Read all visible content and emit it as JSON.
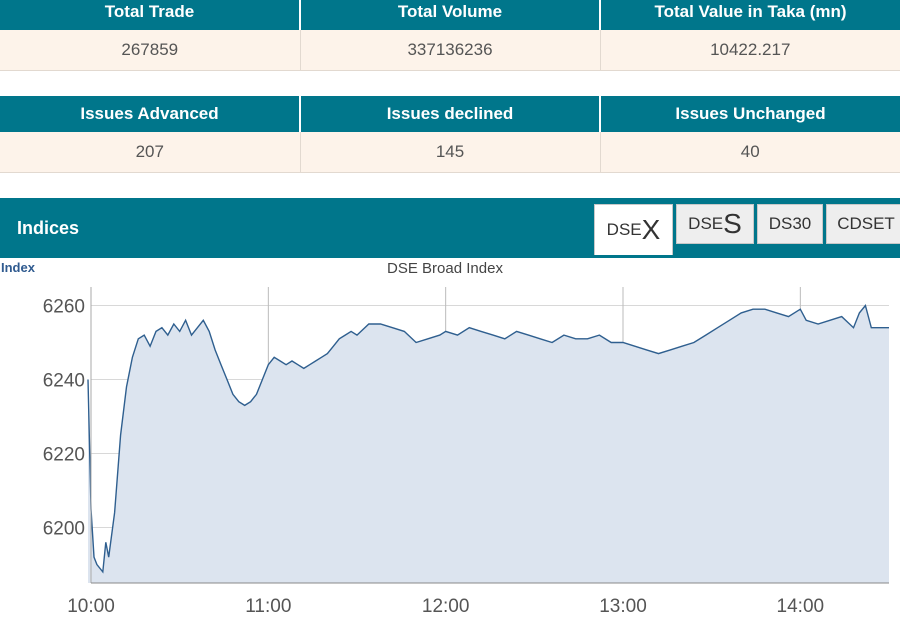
{
  "market_summary": {
    "headers": [
      "Total Trade",
      "Total Volume",
      "Total Value in Taka (mn)"
    ],
    "values": [
      "267859",
      "337136236",
      "10422.217"
    ]
  },
  "issues_summary": {
    "headers": [
      "Issues Advanced",
      "Issues declined",
      "Issues Unchanged"
    ],
    "values": [
      "207",
      "145",
      "40"
    ]
  },
  "indices": {
    "title": "Indices",
    "tabs": [
      {
        "prefix": "DSE",
        "suffix": "X",
        "active": true
      },
      {
        "prefix": "DSE",
        "suffix": "S",
        "active": false
      },
      {
        "prefix": "DS30",
        "suffix": "",
        "active": false
      },
      {
        "prefix": "CDSET",
        "suffix": "",
        "active": false
      }
    ]
  },
  "chart_data": {
    "type": "area",
    "title": "DSE Broad Index",
    "corner_label": "Index",
    "ylim": [
      6185,
      6265
    ],
    "yticks": [
      6200,
      6220,
      6240,
      6260
    ],
    "xlim": [
      "10:00",
      "14:30"
    ],
    "xticks": [
      "10:00",
      "11:00",
      "12:00",
      "13:00",
      "14:00"
    ],
    "grid": true,
    "line_color": "#2f5f8f",
    "fill_color": "#dce4ef",
    "series": [
      {
        "x": [
          "09:59",
          "10:00",
          "10:01",
          "10:02",
          "10:04",
          "10:05",
          "10:06",
          "10:08",
          "10:10",
          "10:12",
          "10:14",
          "10:16",
          "10:18",
          "10:20",
          "10:22",
          "10:24",
          "10:26",
          "10:28",
          "10:30",
          "10:32",
          "10:34",
          "10:36",
          "10:38",
          "10:40",
          "10:42",
          "10:44",
          "10:46",
          "10:48",
          "10:50",
          "10:52",
          "10:54",
          "10:56",
          "10:58",
          "11:00",
          "11:02",
          "11:04",
          "11:06",
          "11:08",
          "11:10",
          "11:12",
          "11:14",
          "11:16",
          "11:18",
          "11:20",
          "11:22",
          "11:24",
          "11:26",
          "11:28",
          "11:30",
          "11:34",
          "11:38",
          "11:42",
          "11:46",
          "11:50",
          "11:54",
          "11:58",
          "12:00",
          "12:04",
          "12:08",
          "12:12",
          "12:16",
          "12:20",
          "12:24",
          "12:28",
          "12:32",
          "12:36",
          "12:40",
          "12:44",
          "12:48",
          "12:52",
          "12:56",
          "13:00",
          "13:04",
          "13:08",
          "13:12",
          "13:16",
          "13:20",
          "13:24",
          "13:28",
          "13:32",
          "13:36",
          "13:40",
          "13:44",
          "13:48",
          "13:52",
          "13:56",
          "14:00",
          "14:02",
          "14:06",
          "14:10",
          "14:14",
          "14:18",
          "14:20",
          "14:22",
          "14:24",
          "14:30"
        ],
        "y": [
          6240,
          6205,
          6192,
          6190,
          6188,
          6196,
          6192,
          6204,
          6225,
          6238,
          6246,
          6251,
          6252,
          6249,
          6253,
          6254,
          6252,
          6255,
          6253,
          6256,
          6252,
          6254,
          6256,
          6253,
          6248,
          6244,
          6240,
          6236,
          6234,
          6233,
          6234,
          6236,
          6240,
          6244,
          6246,
          6245,
          6244,
          6245,
          6244,
          6243,
          6244,
          6245,
          6246,
          6247,
          6249,
          6251,
          6252,
          6253,
          6252,
          6255,
          6255,
          6254,
          6253,
          6250,
          6251,
          6252,
          6253,
          6252,
          6254,
          6253,
          6252,
          6251,
          6253,
          6252,
          6251,
          6250,
          6252,
          6251,
          6251,
          6252,
          6250,
          6250,
          6249,
          6248,
          6247,
          6248,
          6249,
          6250,
          6252,
          6254,
          6256,
          6258,
          6259,
          6259,
          6258,
          6257,
          6259,
          6256,
          6255,
          6256,
          6257,
          6254,
          6258,
          6260,
          6254,
          6254
        ]
      }
    ]
  }
}
